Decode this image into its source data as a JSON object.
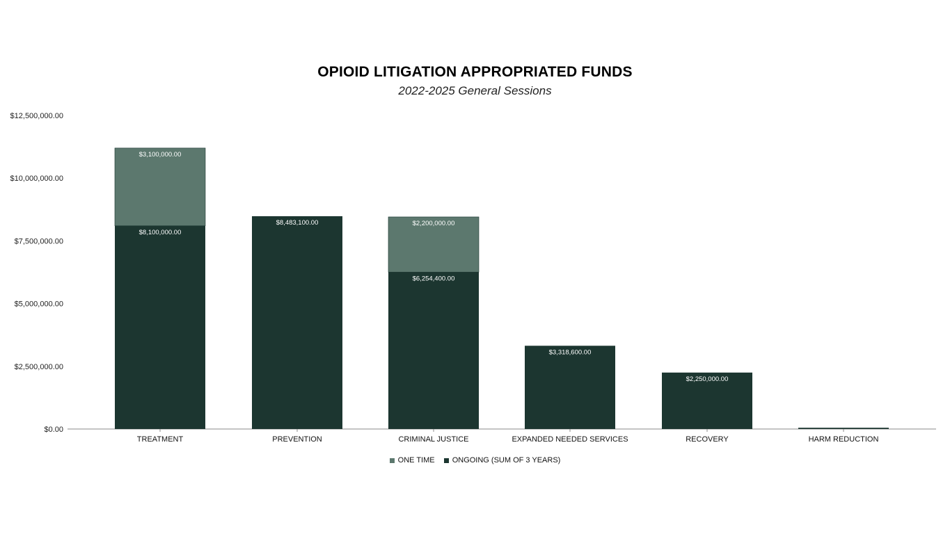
{
  "colors": {
    "one_time": "#5c786e",
    "ongoing": "#1c3630",
    "axis": "#888888"
  },
  "chart_data": {
    "type": "bar",
    "stacked": true,
    "title": "OPIOID LITIGATION APPROPRIATED FUNDS",
    "subtitle": "2022-2025 General Sessions",
    "categories": [
      "TREATMENT",
      "PREVENTION",
      "CRIMINAL JUSTICE",
      "EXPANDED NEEDED SERVICES",
      "RECOVERY",
      "HARM REDUCTION"
    ],
    "series": [
      {
        "name": "ONGOING (SUM OF 3 YEARS)",
        "values": [
          8100000,
          8483100,
          6254400,
          3318600,
          2250000,
          50000
        ],
        "labels": [
          "$8,100,000.00",
          "$8,483,100.00",
          "$6,254,400.00",
          "$3,318,600.00",
          "$2,250,000.00",
          ""
        ]
      },
      {
        "name": "ONE TIME",
        "values": [
          3100000,
          0,
          2200000,
          0,
          0,
          0
        ],
        "labels": [
          "$3,100,000.00",
          "",
          "$2,200,000.00",
          "",
          "",
          ""
        ]
      }
    ],
    "ylim": [
      0,
      12500000
    ],
    "yticks": [
      0,
      2500000,
      5000000,
      7500000,
      10000000,
      12500000
    ],
    "ytick_labels": [
      "$0.00",
      "$2,500,000.00",
      "$5,000,000.00",
      "$7,500,000.00",
      "$10,000,000.00",
      "$12,500,000.00"
    ],
    "grid": false,
    "legend_position": "bottom"
  },
  "legend": {
    "one_time_label": "ONE TIME",
    "ongoing_label": "ONGOING (SUM OF 3 YEARS)"
  }
}
